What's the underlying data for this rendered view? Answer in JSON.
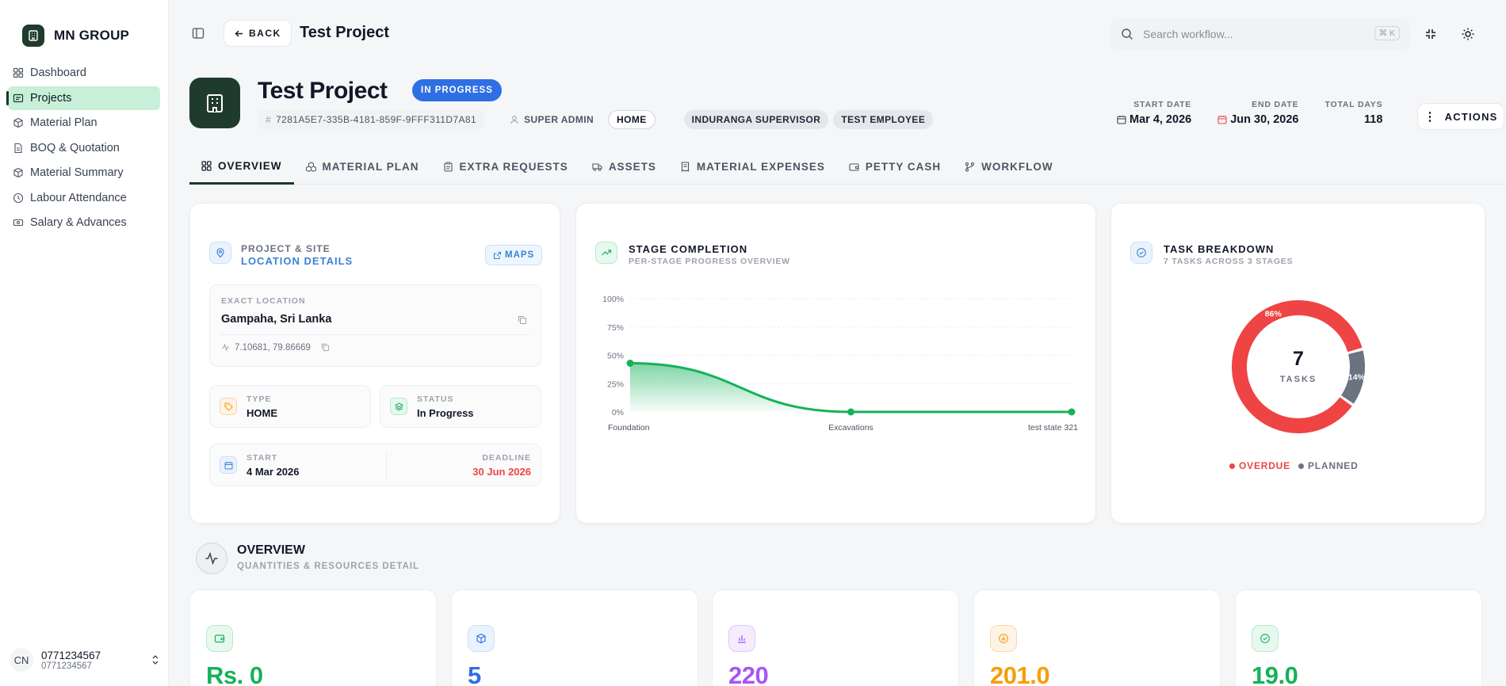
{
  "brand": {
    "name": "MN GROUP"
  },
  "sidebar": {
    "items": [
      {
        "label": "Dashboard",
        "icon": "dashboard-icon",
        "active": false
      },
      {
        "label": "Projects",
        "icon": "projects-icon",
        "active": true
      },
      {
        "label": "Material Plan",
        "icon": "box-icon",
        "active": false
      },
      {
        "label": "BOQ & Quotation",
        "icon": "document-icon",
        "active": false
      },
      {
        "label": "Material Summary",
        "icon": "box-icon",
        "active": false
      },
      {
        "label": "Labour Attendance",
        "icon": "clock-icon",
        "active": false
      },
      {
        "label": "Salary & Advances",
        "icon": "money-icon",
        "active": false
      }
    ],
    "user": {
      "initials": "CN",
      "phone": "0771234567",
      "sub": "0771234567"
    }
  },
  "topbar": {
    "back_label": "BACK",
    "title": "Test Project",
    "search_placeholder": "Search workflow...",
    "search_shortcut": "⌘ K"
  },
  "header": {
    "title": "Test Project",
    "status": "IN PROGRESS",
    "id": "7281A5E7-335B-4181-859F-9FFF311D7A81",
    "owner": "SUPER ADMIN",
    "type_chip": "HOME",
    "tags": [
      "INDURANGA SUPERVISOR",
      "TEST EMPLOYEE"
    ],
    "start_label": "START DATE",
    "start_value": "Mar 4, 2026",
    "end_label": "END DATE",
    "end_value": "Jun 30, 2026",
    "total_label": "TOTAL DAYS",
    "total_value": "118",
    "actions_label": "ACTIONS"
  },
  "tabs": [
    {
      "label": "OVERVIEW",
      "icon": "grid-icon",
      "active": true
    },
    {
      "label": "MATERIAL PLAN",
      "icon": "cubes-icon",
      "active": false
    },
    {
      "label": "EXTRA REQUESTS",
      "icon": "clipboard-icon",
      "active": false
    },
    {
      "label": "ASSETS",
      "icon": "truck-icon",
      "active": false
    },
    {
      "label": "MATERIAL EXPENSES",
      "icon": "receipt-icon",
      "active": false
    },
    {
      "label": "PETTY CASH",
      "icon": "wallet-icon",
      "active": false
    },
    {
      "label": "WORKFLOW",
      "icon": "branch-icon",
      "active": false
    }
  ],
  "location_card": {
    "title_top": "PROJECT & SITE",
    "title_bottom": "LOCATION DETAILS",
    "maps_label": "MAPS",
    "exact_label": "EXACT LOCATION",
    "exact_value": "Gampaha, Sri Lanka",
    "coords": "7.10681, 79.86669",
    "type_label": "TYPE",
    "type_value": "HOME",
    "status_label": "STATUS",
    "status_value": "In Progress",
    "start_label": "START",
    "start_value": "4 Mar 2026",
    "deadline_label": "DEADLINE",
    "deadline_value": "30 Jun 2026"
  },
  "stage_card": {
    "title": "STAGE COMPLETION",
    "subtitle": "PER-STAGE PROGRESS OVERVIEW"
  },
  "task_card": {
    "title": "TASK BREAKDOWN",
    "subtitle": "7 TASKS ACROSS 3 STAGES",
    "center_value": "7",
    "center_label": "TASKS",
    "legend": [
      {
        "label": "OVERDUE",
        "color": "#ef4444"
      },
      {
        "label": "PLANNED",
        "color": "#6b7280"
      }
    ]
  },
  "overview": {
    "title": "OVERVIEW",
    "subtitle": "QUANTITIES & RESOURCES DETAIL",
    "stats": [
      {
        "value": "Rs. 0",
        "color": "#16b25a",
        "icon": "wallet-icon"
      },
      {
        "value": "5",
        "color": "#2f6fe4",
        "icon": "cube-icon"
      },
      {
        "value": "220",
        "color": "#a855f7",
        "icon": "bar-chart-icon"
      },
      {
        "value": "201.0",
        "color": "#f59e0b",
        "icon": "download-icon"
      },
      {
        "value": "19.0",
        "color": "#16b25a",
        "icon": "check-circle-icon"
      }
    ]
  },
  "chart_data": [
    {
      "type": "area",
      "title": "STAGE COMPLETION",
      "categories": [
        "Foundation",
        "Excavations",
        "test state 321"
      ],
      "values": [
        43,
        0,
        0
      ],
      "yticks": [
        "0%",
        "25%",
        "50%",
        "75%",
        "100%"
      ],
      "ylim": [
        0,
        100
      ],
      "color": "#16b25a",
      "grid": true
    },
    {
      "type": "pie",
      "title": "TASK BREAKDOWN",
      "series": [
        {
          "name": "OVERDUE",
          "value": 86,
          "label": "86%",
          "color": "#ef4444"
        },
        {
          "name": "PLANNED",
          "value": 14,
          "label": "14%",
          "color": "#6b7280"
        }
      ]
    }
  ]
}
